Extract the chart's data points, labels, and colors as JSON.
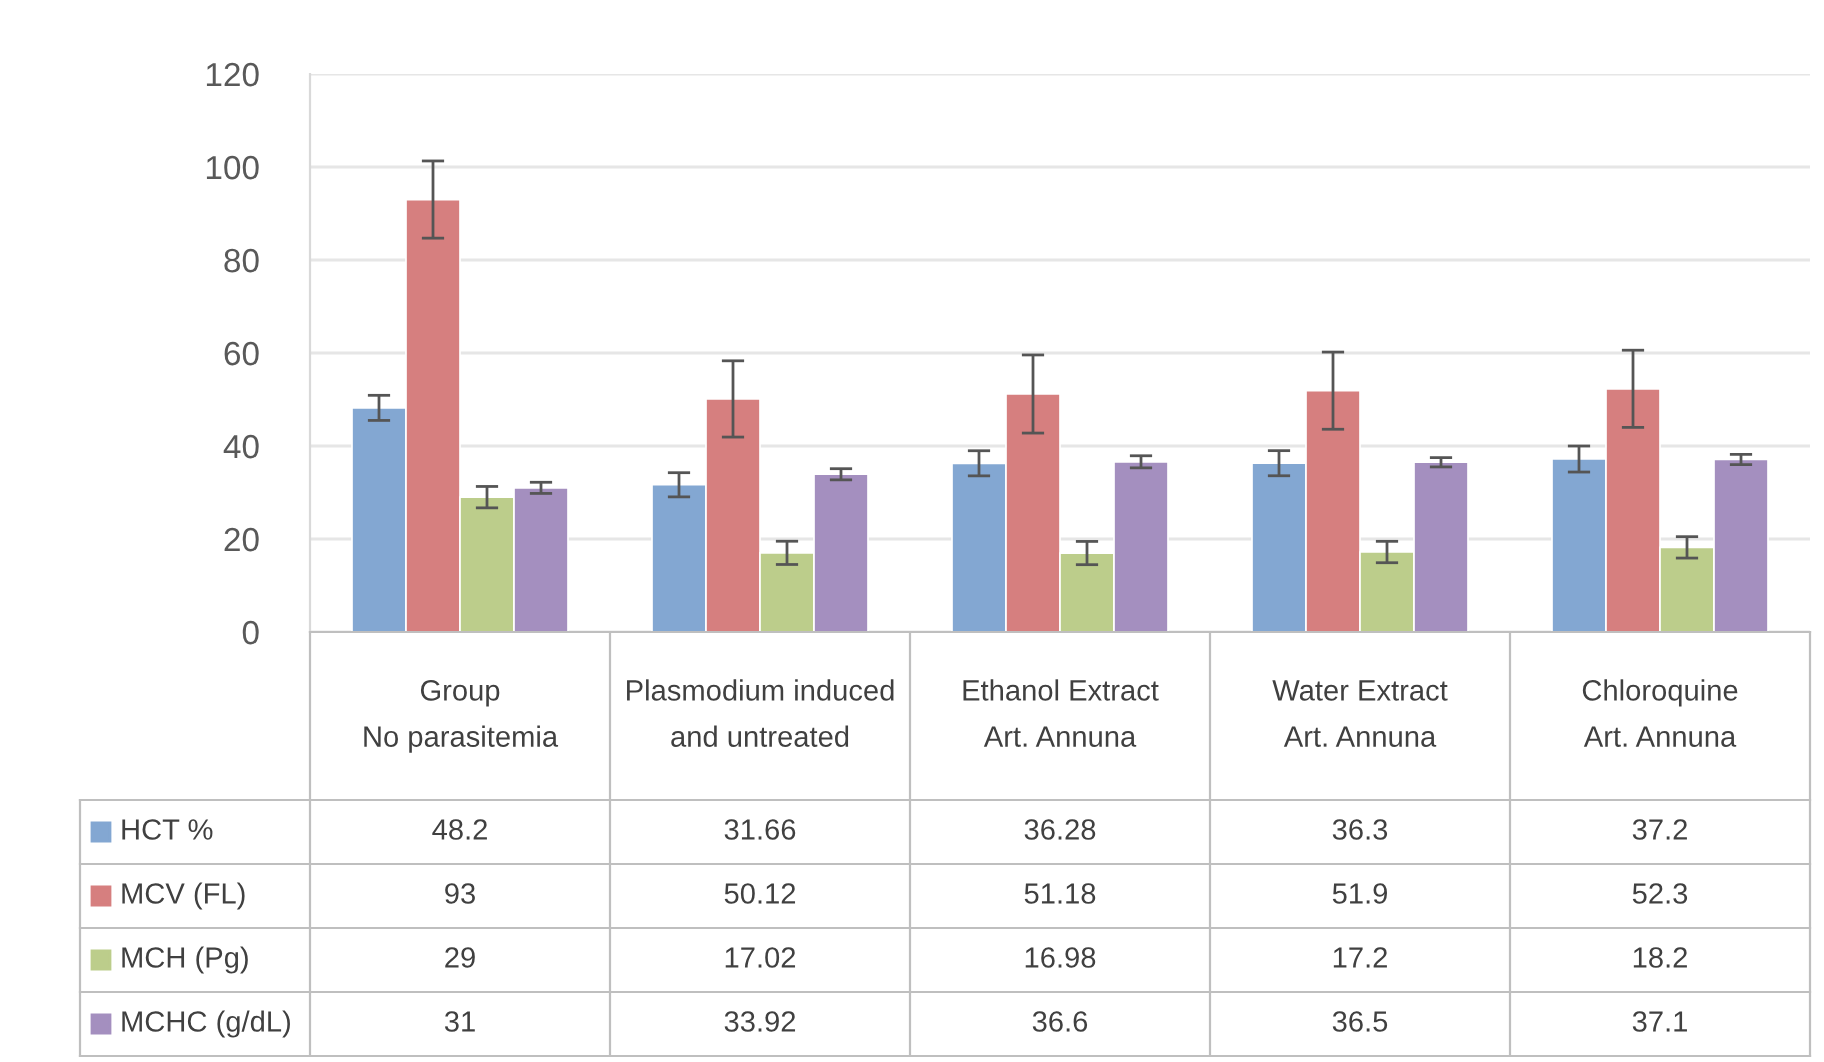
{
  "chart_data": {
    "type": "bar",
    "categories": [
      "Group\nNo parasitemia",
      "Plasmodium induced\nand untreated",
      "Ethanol Extract\nArt. Annuna",
      "Water Extract\nArt. Annuna",
      "Chloroquine\nArt. Annuna"
    ],
    "series": [
      {
        "name": "HCT %",
        "color": "#83a7d2",
        "values": [
          48.2,
          31.66,
          36.28,
          36.3,
          37.2
        ],
        "errors": [
          2.7,
          2.6,
          2.7,
          2.7,
          2.8
        ]
      },
      {
        "name": "MCV (FL)",
        "color": "#d67f7f",
        "values": [
          93,
          50.12,
          51.18,
          51.9,
          52.3
        ],
        "errors": [
          8.3,
          8.2,
          8.4,
          8.3,
          8.3
        ]
      },
      {
        "name": "MCH (Pg)",
        "color": "#bccd8b",
        "values": [
          29,
          17.02,
          16.98,
          17.2,
          18.2
        ],
        "errors": [
          2.3,
          2.5,
          2.5,
          2.3,
          2.3
        ]
      },
      {
        "name": "MCHC (g/dL)",
        "color": "#a48fbf",
        "values": [
          31,
          33.92,
          36.6,
          36.5,
          37.1
        ],
        "errors": [
          1.2,
          1.2,
          1.3,
          1.0,
          1.1
        ]
      }
    ],
    "ylim": [
      0,
      120
    ],
    "yticks": [
      0,
      20,
      40,
      60,
      80,
      100,
      120
    ],
    "grid": "y",
    "legend": "bottom",
    "data_labels": true
  }
}
